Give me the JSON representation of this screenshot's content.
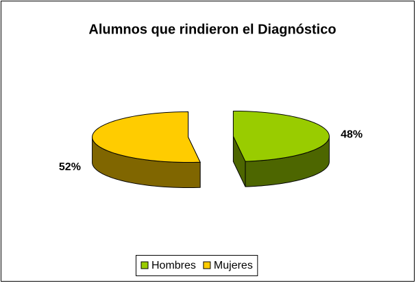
{
  "chart_data": {
    "type": "pie3d",
    "title": "Alumnos que rindieron el Diagnóstico",
    "categories": [
      "Hombres",
      "Mujeres"
    ],
    "values": [
      48,
      52
    ],
    "value_labels": [
      "48%",
      "52%"
    ],
    "colors": [
      "#99cc00",
      "#ffcc00"
    ],
    "legend": "bottom"
  }
}
